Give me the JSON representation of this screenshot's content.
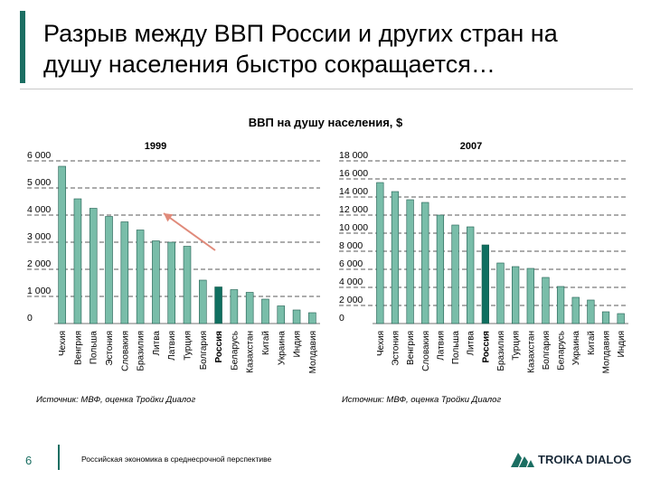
{
  "slide": {
    "title": "Разрыв между ВВП России и других стран на душу населения быстро сокращается…",
    "page_number": "6",
    "footer_text": "Российская экономика в среднесрочной перспективе",
    "logo_text": "TROIKA DIALOG"
  },
  "colors": {
    "accent": "#1b6e62",
    "bar": "#79bda9",
    "bar_edge": "#1e5c4f",
    "highlight": "#0f6f60",
    "arrow": "#e08a7a"
  },
  "chart_data": [
    {
      "type": "bar",
      "main_title": "ВВП на душу населения, $",
      "title": "1999",
      "ylim": [
        0,
        6000
      ],
      "yticks": [
        0,
        1000,
        2000,
        3000,
        4000,
        5000,
        6000
      ],
      "ytick_labels": [
        "0",
        "1 000",
        "2 000",
        "3 000",
        "4 000",
        "5 000",
        "6 000"
      ],
      "grid": true,
      "highlight": "Россия",
      "categories": [
        "Чехия",
        "Венгрия",
        "Польша",
        "Эстония",
        "Словакия",
        "Бразилия",
        "Литва",
        "Латвия",
        "Турция",
        "Болгария",
        "Россия",
        "Беларусь",
        "Казахстан",
        "Китай",
        "Украина",
        "Индия",
        "Молдавия"
      ],
      "values": [
        5800,
        4600,
        4250,
        3950,
        3750,
        3450,
        3050,
        3000,
        2850,
        1600,
        1350,
        1250,
        1150,
        900,
        650,
        500,
        400
      ],
      "annotation": "arrow",
      "source": "Источник: МВФ, оценка Тройки Диалог"
    },
    {
      "type": "bar",
      "title": "2007",
      "ylim": [
        0,
        18000
      ],
      "yticks": [
        0,
        2000,
        4000,
        6000,
        8000,
        10000,
        12000,
        14000,
        16000,
        18000
      ],
      "ytick_labels": [
        "0",
        "2 000",
        "4 000",
        "6 000",
        "8 000",
        "10 000",
        "12 000",
        "14 000",
        "16 000",
        "18 000"
      ],
      "grid": true,
      "highlight": "Россия",
      "categories": [
        "Чехия",
        "Эстония",
        "Венгрия",
        "Словакия",
        "Латвия",
        "Польша",
        "Литва",
        "Россия",
        "Бразилия",
        "Турция",
        "Казахстан",
        "Болгария",
        "Беларусь",
        "Украина",
        "Китай",
        "Молдавия",
        "Индия"
      ],
      "values": [
        15600,
        14600,
        13700,
        13400,
        12000,
        10900,
        10700,
        8700,
        6700,
        6300,
        6100,
        5100,
        4100,
        2900,
        2600,
        1300,
        1100
      ],
      "source": "Источник: МВФ, оценка Тройки Диалог"
    }
  ]
}
